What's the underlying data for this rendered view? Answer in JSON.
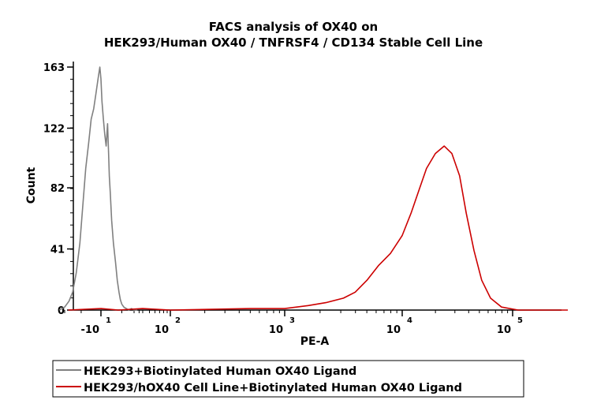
{
  "chart_data": {
    "type": "line",
    "title": [
      "FACS analysis of OX40 on",
      "HEK293/Human OX40 / TNFRSF4 / CD134 Stable Cell Line"
    ],
    "xlabel": "PE-A",
    "ylabel": "Count",
    "ylim": [
      0,
      163
    ],
    "y_ticks": [
      "0",
      "41",
      "82",
      "122",
      "163"
    ],
    "x_scale": "biexponential",
    "x_ticks": [
      {
        "base": "-10",
        "exp": "1"
      },
      {
        "base": "10",
        "exp": "2"
      },
      {
        "base": "10",
        "exp": "3"
      },
      {
        "base": "10",
        "exp": "4"
      },
      {
        "base": "10",
        "exp": "5"
      }
    ],
    "grid": false,
    "legend_position": "bottom",
    "series": [
      {
        "name": "HEK293+Biotinylated Human OX40 Ligand",
        "color": "#808080",
        "x": [
          -1.15,
          -1.0,
          -0.88,
          -0.78,
          -0.68,
          -0.58,
          -0.5,
          -0.42,
          -0.34,
          -0.27,
          -0.2,
          -0.14,
          -0.08,
          -0.03,
          0.0,
          0.03,
          0.07,
          0.11,
          0.15,
          0.19,
          0.22,
          0.24,
          0.27,
          0.31,
          0.36,
          0.42,
          0.47,
          0.52,
          0.56,
          0.6,
          0.66,
          0.73,
          0.8,
          0.88,
          0.96,
          1.05
        ],
        "y": [
          0,
          2,
          6,
          12,
          25,
          45,
          70,
          95,
          112,
          128,
          135,
          145,
          155,
          163,
          155,
          140,
          128,
          118,
          110,
          125,
          105,
          90,
          78,
          60,
          45,
          32,
          20,
          12,
          7,
          4,
          2,
          1,
          0,
          1,
          0,
          0
        ]
      },
      {
        "name": "HEK293/hOX40 Cell Line+Biotinylated Human OX40 Ligand",
        "color": "#cc0000",
        "x": [
          -0.9,
          0.0,
          0.5,
          1.2,
          2.0,
          2.7,
          3.0,
          3.2,
          3.35,
          3.5,
          3.6,
          3.7,
          3.8,
          3.9,
          4.0,
          4.08,
          4.15,
          4.22,
          4.3,
          4.38,
          4.45,
          4.52,
          4.58,
          4.65,
          4.72,
          4.8,
          4.9,
          5.05,
          5.25,
          5.5
        ],
        "y": [
          0,
          1,
          0,
          1,
          0,
          1,
          1,
          3,
          5,
          8,
          12,
          20,
          30,
          38,
          50,
          65,
          80,
          95,
          105,
          110,
          105,
          90,
          65,
          40,
          20,
          8,
          2,
          0,
          0,
          0
        ]
      }
    ]
  }
}
